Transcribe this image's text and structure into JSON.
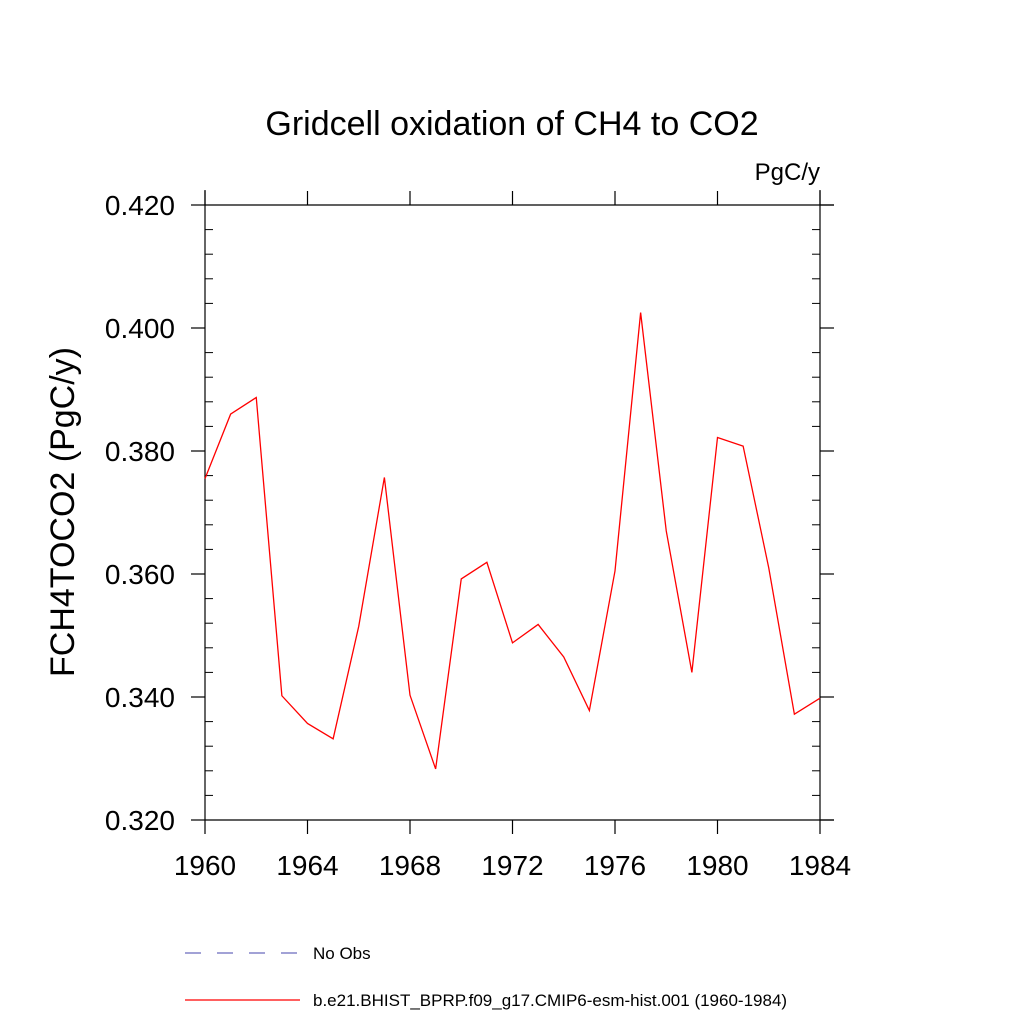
{
  "chart_data": {
    "type": "line",
    "title": "Gridcell oxidation of CH4 to CO2",
    "units": "PgC/y",
    "xlabel": "",
    "ylabel": "FCH4TOCO2  (PgC/y)",
    "xlim": [
      1960,
      1984
    ],
    "ylim": [
      0.32,
      0.42
    ],
    "x_ticks": [
      1960,
      1964,
      1968,
      1972,
      1976,
      1980,
      1984
    ],
    "x_tick_labels": [
      "1960",
      "1964",
      "1968",
      "1972",
      "1976",
      "1980",
      "1984"
    ],
    "y_ticks": [
      0.32,
      0.34,
      0.36,
      0.38,
      0.4,
      0.42
    ],
    "y_tick_labels": [
      "0.320",
      "0.340",
      "0.360",
      "0.380",
      "0.400",
      "0.420"
    ],
    "grid": false,
    "legend_position": "bottom",
    "series": [
      {
        "name": "b.e21.BHIST_BPRP.f09_g17.CMIP6-esm-hist.001 (1960-1984)",
        "color": "#ff0000",
        "style": "solid",
        "x": [
          1960,
          1961,
          1962,
          1963,
          1964,
          1965,
          1966,
          1967,
          1968,
          1969,
          1970,
          1971,
          1972,
          1973,
          1974,
          1975,
          1976,
          1977,
          1978,
          1979,
          1980,
          1981,
          1982,
          1983,
          1984
        ],
        "values": [
          0.3755,
          0.386,
          0.3887,
          0.3402,
          0.3357,
          0.3332,
          0.3515,
          0.3757,
          0.3403,
          0.3283,
          0.3592,
          0.3619,
          0.3488,
          0.3518,
          0.3465,
          0.3378,
          0.3605,
          0.4025,
          0.367,
          0.344,
          0.3822,
          0.3808,
          0.361,
          0.3372,
          0.3398
        ]
      }
    ],
    "legend_entries": [
      {
        "label": "No Obs",
        "color": "#6b6bbd",
        "style": "dashed"
      },
      {
        "label": "b.e21.BHIST_BPRP.f09_g17.CMIP6-esm-hist.001 (1960-1984)",
        "color": "#ff0000",
        "style": "solid"
      }
    ]
  }
}
